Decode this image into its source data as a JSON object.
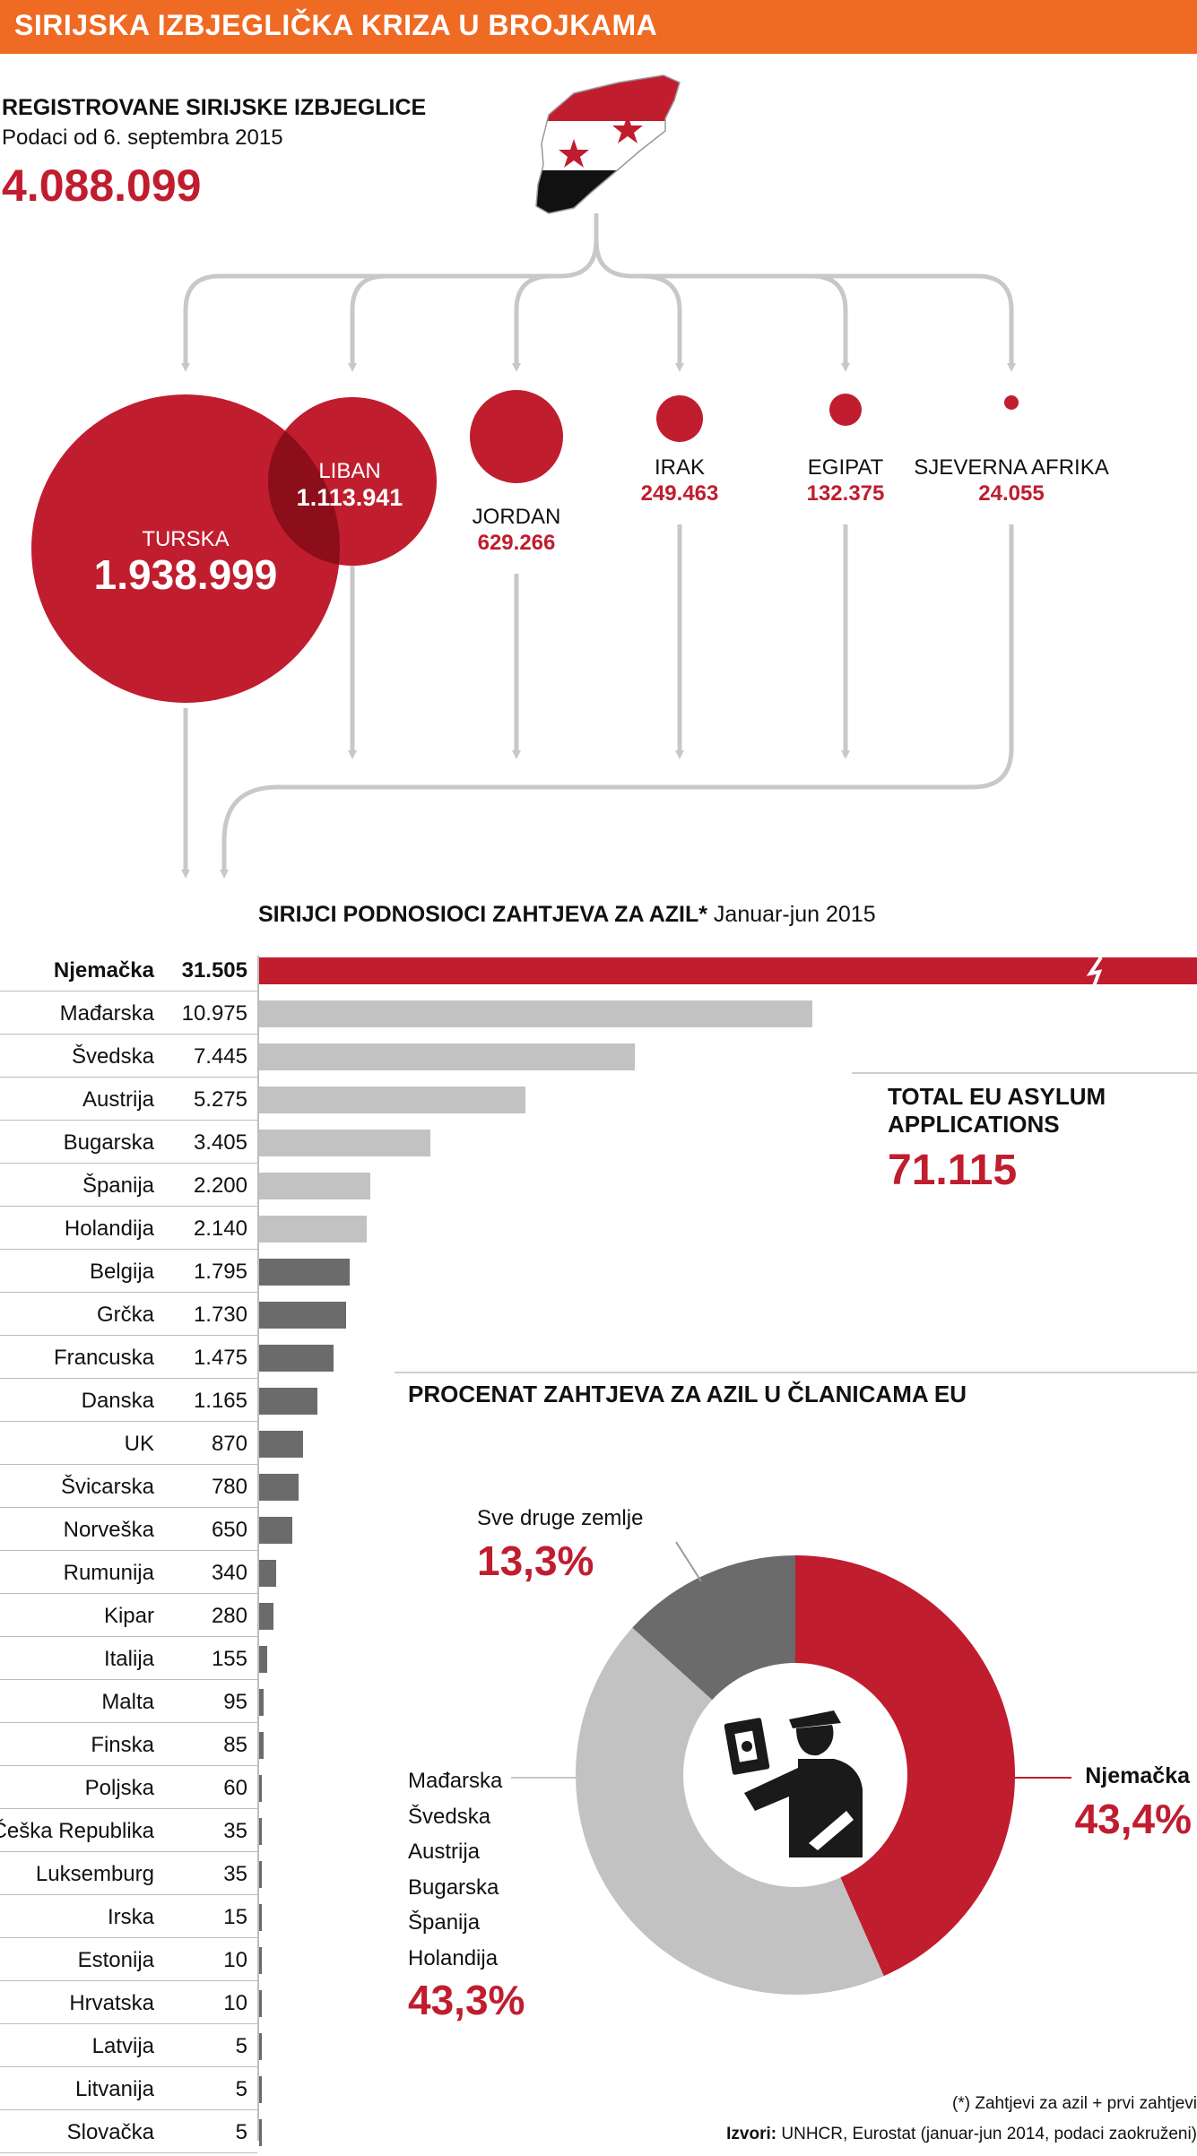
{
  "header": {
    "title": "SIRIJSKA IZBJEGLIČKA KRIZA U BROJKAMA"
  },
  "colors": {
    "header": "#ef6a23",
    "accent": "#c01d2f",
    "light_gray": "#c2c2c2",
    "dark_gray": "#6b6b6b",
    "connector": "#c8c8c8"
  },
  "registered": {
    "title": "REGISTROVANE SIRIJSKE IZBJEGLICE",
    "subtitle": "Podaci od 6. septembra 2015",
    "total": "4.088.099"
  },
  "countries": [
    {
      "name": "TURSKA",
      "value": "1.938.999"
    },
    {
      "name": "LIBAN",
      "value": "1.113.941"
    },
    {
      "name": "JORDAN",
      "value": "629.266"
    },
    {
      "name": "IRAK",
      "value": "249.463"
    },
    {
      "name": "EGIPAT",
      "value": "132.375"
    },
    {
      "name": "SJEVERNA AFRIKA",
      "value": "24.055"
    }
  ],
  "asylum": {
    "title_bold": "SIRIJCI PODNOSIOCI ZAHTJEVA ZA AZIL*",
    "title_period": "Januar-jun 2015",
    "total_title": "TOTAL EU ASYLUM APPLICATIONS",
    "total_value": "71.115"
  },
  "pie": {
    "title": "PROCENAT ZAHTJEVA ZA AZIL U ČLANICAMA EU",
    "other_label": "Sve druge zemlje",
    "other_value": "13,3%",
    "mid_countries": [
      "Mađarska",
      "Švedska",
      "Austrija",
      "Bugarska",
      "Španija",
      "Holandija"
    ],
    "mid_value": "43,3%",
    "germany_label": "Njemačka",
    "germany_value": "43,4%",
    "icon": "border-officer-passport-icon"
  },
  "footnote": "(*) Zahtjevi za azil + prvi zahtjevi",
  "sources_label": "Izvori:",
  "sources_text": "UNHCR, Eurostat (januar-jun 2014, podaci zaokruženi)",
  "chart_data": [
    {
      "type": "bubble",
      "title": "REGISTROVANE SIRIJSKE IZBJEGLICE",
      "categories": [
        "TURSKA",
        "LIBAN",
        "JORDAN",
        "IRAK",
        "EGIPAT",
        "SJEVERNA AFRIKA"
      ],
      "values": [
        1938999,
        1113941,
        629266,
        249463,
        132375,
        24055
      ]
    },
    {
      "type": "bar",
      "orientation": "horizontal",
      "title": "SIRIJCI PODNOSIOCI ZAHTJEVA ZA AZIL* Januar-jun 2015",
      "categories": [
        "Njemačka",
        "Mađarska",
        "Švedska",
        "Austrija",
        "Bugarska",
        "Španija",
        "Holandija",
        "Belgija",
        "Grčka",
        "Francuska",
        "Danska",
        "UK",
        "Švicarska",
        "Norveška",
        "Rumunija",
        "Kipar",
        "Italija",
        "Malta",
        "Finska",
        "Poljska",
        "Češka Republika",
        "Luksemburg",
        "Irska",
        "Estonija",
        "Hrvatska",
        "Latvija",
        "Litvanija",
        "Slovačka"
      ],
      "labels": [
        "31.505",
        "10.975",
        "7.445",
        "5.275",
        "3.405",
        "2.200",
        "2.140",
        "1.795",
        "1.730",
        "1.475",
        "1.165",
        "870",
        "780",
        "650",
        "340",
        "280",
        "155",
        "95",
        "85",
        "60",
        "35",
        "35",
        "15",
        "10",
        "10",
        "5",
        "5",
        "5"
      ],
      "values": [
        31505,
        10975,
        7445,
        5275,
        3405,
        2200,
        2140,
        1795,
        1730,
        1475,
        1165,
        870,
        780,
        650,
        340,
        280,
        155,
        95,
        85,
        60,
        35,
        35,
        15,
        10,
        10,
        5,
        5,
        5
      ],
      "groups": [
        "highlight",
        "light",
        "light",
        "light",
        "light",
        "light",
        "light",
        "dark",
        "dark",
        "dark",
        "dark",
        "dark",
        "dark",
        "dark",
        "dark",
        "dark",
        "dark",
        "dark",
        "dark",
        "dark",
        "dark",
        "dark",
        "dark",
        "dark",
        "dark",
        "dark",
        "dark",
        "dark"
      ]
    },
    {
      "type": "pie",
      "donut": true,
      "title": "PROCENAT ZAHTJEVA ZA AZIL U ČLANICAMA EU",
      "categories": [
        "Njemačka",
        "Mađarska, Švedska, Austrija, Bugarska, Španija, Holandija",
        "Sve druge zemlje"
      ],
      "values": [
        43.4,
        43.3,
        13.3
      ]
    }
  ]
}
